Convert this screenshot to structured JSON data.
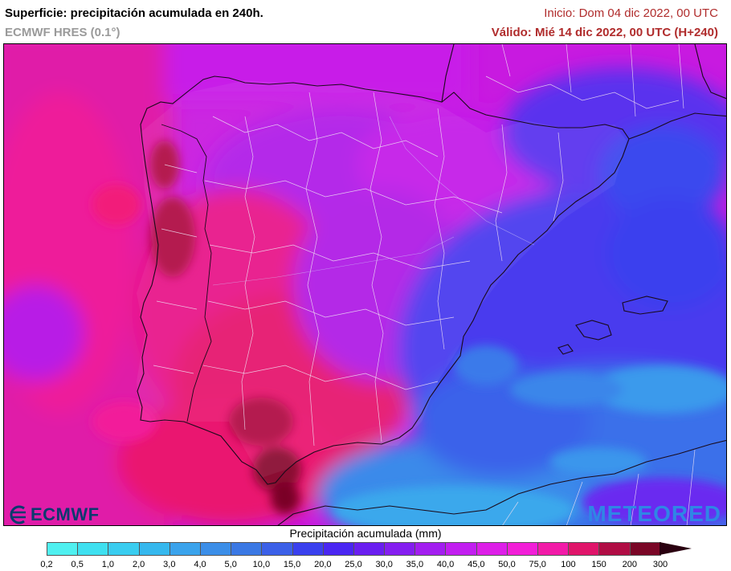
{
  "header": {
    "title": "Superficie: precipitación acumulada en 240h.",
    "subtitle": "ECMWF HRES (0.1°)",
    "init": "Inicio: Dom 04 dic 2022, 00 UTC",
    "valid": "Válido: Mié 14 dic 2022, 00 UTC (H+240)"
  },
  "logos": {
    "left": "ECMWF",
    "right": "METEORED"
  },
  "legend": {
    "title": "Precipitación acumulada (mm)",
    "ticks": [
      "0,2",
      "0,5",
      "1,0",
      "2,0",
      "3,0",
      "4,0",
      "5,0",
      "10,0",
      "15,0",
      "20,0",
      "25,0",
      "30,0",
      "35,0",
      "40,0",
      "45,0",
      "50,0",
      "75,0",
      "100",
      "150",
      "200",
      "300"
    ],
    "colors": [
      "#4ff0f0",
      "#3ee0f0",
      "#39cdf0",
      "#35b8ee",
      "#3aa3ec",
      "#3b8ee8",
      "#3a78e4",
      "#3b60e8",
      "#3a40ee",
      "#4a26f2",
      "#6a1ef0",
      "#851ef0",
      "#a31ef0",
      "#c21ef0",
      "#dd1ee8",
      "#f21ed8",
      "#f21aa8",
      "#e0146a",
      "#b00c44",
      "#7a0626"
    ]
  },
  "map": {
    "colors": {
      "sea_magenta": "#d81ad8",
      "sea_pink": "#f01aa0",
      "land_pink": "#e8177c",
      "land_violet": "#a41ae6",
      "deep_red": "#b00c44",
      "blue": "#3a55ea",
      "light_blue": "#3aa6ec",
      "border": "#e8e0f0",
      "coast": "#1a0a1a"
    }
  }
}
